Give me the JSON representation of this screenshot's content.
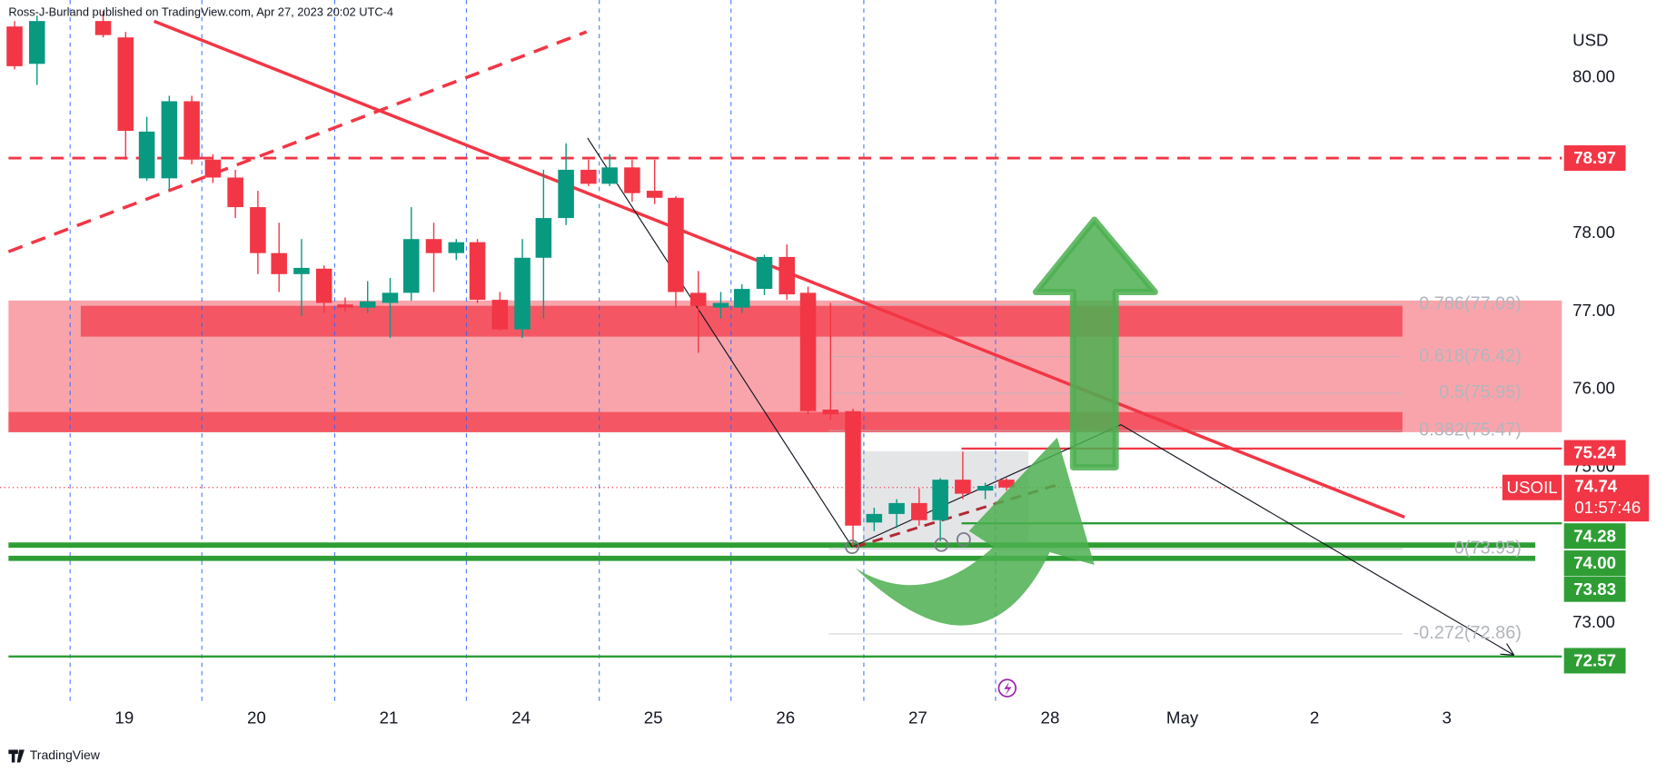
{
  "header": "Ross-J-Burland published on TradingView.com, Apr 27, 2023 20:02 UTC-4",
  "footer": "TradingView",
  "chart_data": {
    "type": "candlestick",
    "symbol": "USOIL",
    "currency": "USD",
    "up_color": "#089981",
    "down_color": "#f23645",
    "x": [
      -0.83,
      -0.66,
      -0.16,
      0.01,
      0.17,
      0.34,
      0.51,
      0.67,
      0.84,
      1.01,
      1.17,
      1.34,
      1.51,
      1.67,
      1.84,
      2.01,
      2.17,
      2.34,
      2.51,
      2.67,
      2.84,
      3.01,
      3.17,
      3.34,
      3.51,
      3.67,
      3.84,
      4.01,
      4.17,
      4.34,
      4.51,
      4.67,
      4.84,
      5.01,
      5.17,
      5.34,
      5.51,
      5.67,
      5.84,
      6.01,
      6.17,
      6.34,
      6.51,
      6.67
    ],
    "open": [
      80.66,
      80.18,
      80.73,
      80.52,
      78.71,
      78.71,
      79.7,
      78.95,
      78.72,
      78.34,
      77.75,
      77.48,
      77.55,
      77.09,
      77.05,
      77.11,
      77.24,
      77.93,
      77.75,
      77.89,
      77.15,
      76.77,
      77.69,
      78.2,
      78.82,
      78.64,
      78.85,
      78.55,
      78.46,
      77.24,
      77.05,
      77.05,
      77.29,
      77.7,
      77.24,
      75.74,
      75.72,
      74.29,
      74.4,
      74.54,
      74.32,
      74.84,
      74.7,
      74.84
    ],
    "high": [
      80.73,
      80.8,
      80.86,
      80.59,
      79.5,
      79.77,
      79.77,
      79.02,
      78.82,
      78.55,
      78.14,
      77.93,
      77.59,
      77.18,
      77.39,
      77.43,
      78.34,
      78.14,
      77.93,
      77.93,
      77.25,
      77.93,
      78.82,
      79.16,
      78.95,
      79.02,
      78.95,
      78.95,
      78.48,
      77.52,
      77.25,
      77.35,
      77.73,
      77.86,
      77.32,
      77.11,
      75.75,
      74.48,
      74.59,
      74.73,
      74.86,
      75.2,
      74.8,
      74.86
    ],
    "low": [
      80.11,
      79.91,
      80.52,
      78.95,
      78.68,
      78.55,
      78.89,
      78.65,
      78.2,
      77.48,
      77.25,
      76.94,
      76.98,
      77.0,
      76.98,
      76.66,
      77.14,
      77.25,
      77.66,
      77.11,
      76.75,
      76.66,
      76.91,
      78.11,
      78.61,
      78.61,
      78.41,
      78.38,
      77.05,
      76.47,
      76.91,
      76.98,
      77.21,
      77.15,
      75.68,
      75.61,
      73.98,
      74.18,
      74.22,
      74.25,
      74.05,
      74.59,
      74.59,
      74.7
    ],
    "close": [
      80.15,
      80.73,
      80.55,
      79.32,
      79.31,
      79.7,
      78.95,
      78.72,
      78.34,
      77.75,
      77.48,
      77.56,
      77.11,
      77.05,
      77.13,
      77.24,
      77.93,
      77.75,
      77.89,
      77.15,
      76.77,
      77.69,
      78.2,
      78.82,
      78.64,
      78.85,
      78.52,
      78.46,
      77.25,
      77.07,
      77.11,
      77.29,
      77.7,
      77.22,
      75.72,
      75.68,
      74.25,
      74.4,
      74.54,
      74.32,
      74.84,
      74.66,
      74.76,
      74.74
    ],
    "xlim": [
      -0.94,
      10.87
    ],
    "xticks": [
      {
        "value": 0,
        "label": "19"
      },
      {
        "value": 1,
        "label": "20"
      },
      {
        "value": 2,
        "label": "21"
      },
      {
        "value": 3,
        "label": "24"
      },
      {
        "value": 4,
        "label": "25"
      },
      {
        "value": 5,
        "label": "26"
      },
      {
        "value": 6,
        "label": "27"
      },
      {
        "value": 7,
        "label": "28"
      },
      {
        "value": 8,
        "label": "May"
      },
      {
        "value": 9,
        "label": "2"
      },
      {
        "value": 10,
        "label": "3"
      }
    ],
    "ylim": [
      72,
      81
    ],
    "yticks": [
      {
        "value": 80,
        "label": "80.00"
      },
      {
        "value": 78,
        "label": "78.00"
      },
      {
        "value": 77,
        "label": "77.00"
      },
      {
        "value": 76,
        "label": "76.00"
      },
      {
        "value": 75,
        "label": "75.00"
      },
      {
        "value": 73,
        "label": "73.00"
      }
    ],
    "levels": [
      {
        "value": 78.97,
        "label": "78.97",
        "color": "#f23645",
        "style": "dashed"
      },
      {
        "value": 75.24,
        "label": "75.24",
        "color": "#f23645",
        "style": "solid"
      },
      {
        "value": 74.28,
        "label": "74.28",
        "color": "#2e9e34",
        "style": "solid"
      },
      {
        "value": 74.0,
        "label": "74.00",
        "color": "#2e9e34",
        "style": "solid"
      },
      {
        "value": 73.83,
        "label": "73.83",
        "color": "#2e9e34",
        "style": "solid"
      },
      {
        "value": 72.57,
        "label": "72.57",
        "color": "#2e9e34",
        "style": "solid"
      }
    ],
    "fib_levels": [
      {
        "value": 77.09,
        "label": "0.786(77.09)"
      },
      {
        "value": 76.42,
        "label": "0.618(76.42)"
      },
      {
        "value": 75.95,
        "label": "0.5(75.95)"
      },
      {
        "value": 75.47,
        "label": "0.382(75.47)"
      },
      {
        "value": 73.95,
        "label": "0(73.95)"
      },
      {
        "value": 72.86,
        "label": "-0.272(72.86)"
      }
    ],
    "last_price": {
      "value": 74.74,
      "label": "74.74",
      "countdown": "01:57:46"
    }
  }
}
